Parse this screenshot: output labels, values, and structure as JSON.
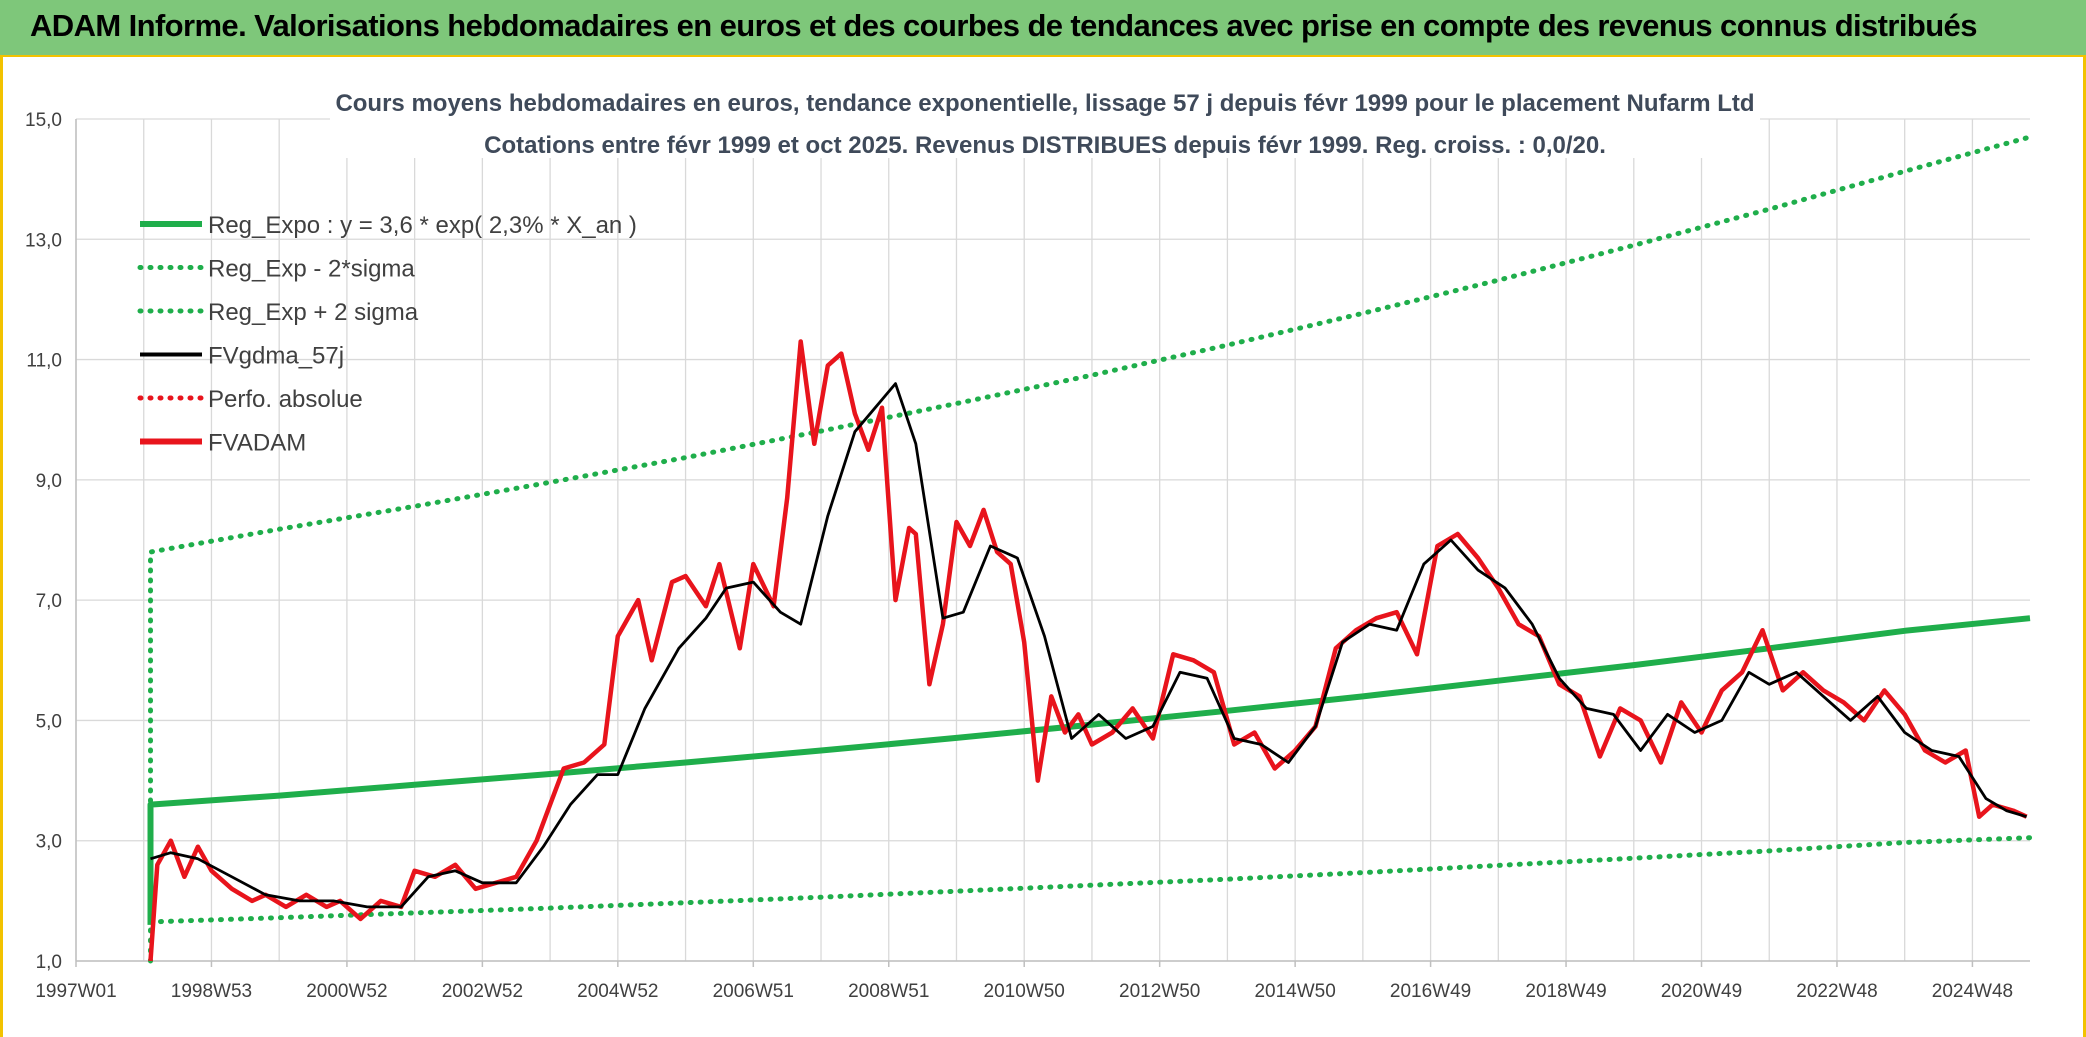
{
  "header": {
    "title": "ADAM Informe. Valorisations hebdomadaires en euros et des courbes de tendances avec prise en compte des revenus connus distribués"
  },
  "chart_data": {
    "type": "line",
    "title": "Cours moyens hebdomadaires en euros, tendance exponentielle, lissage 57 j depuis févr 1999 pour le placement Nufarm Ltd",
    "subtitle": "Cotations entre févr 1999 et oct 2025. Revenus DISTRIBUES depuis févr 1999. Reg. croiss. : 0,0/20.",
    "xlabel": "",
    "ylabel": "",
    "xlim": [
      1997.0,
      2025.85
    ],
    "ylim": [
      1.0,
      15.0
    ],
    "y_ticks": [
      "1,0",
      "3,0",
      "5,0",
      "7,0",
      "9,0",
      "11,0",
      "13,0",
      "15,0"
    ],
    "y_tick_values": [
      1,
      3,
      5,
      7,
      9,
      11,
      13,
      15
    ],
    "x_ticks": [
      "1997W01",
      "1998W53",
      "2000W52",
      "2002W52",
      "2004W52",
      "2006W51",
      "2008W51",
      "2010W50",
      "2012W50",
      "2014W50",
      "2016W49",
      "2018W49",
      "2020W49",
      "2022W48",
      "2024W48"
    ],
    "x_tick_values": [
      1997.0,
      1999.0,
      2001.0,
      2003.0,
      2005.0,
      2007.0,
      2009.0,
      2011.0,
      2013.0,
      2015.0,
      2017.0,
      2019.0,
      2021.0,
      2023.0,
      2025.0
    ],
    "grid": true,
    "legend_position": "top-left",
    "series": [
      {
        "name": "Reg_Expo : y = 3,6 * exp( 2,3% *  X_an )",
        "color": "#1fae4b",
        "style": "solid",
        "x": [
          1998.1,
          1998.1,
          2000,
          2002,
          2004,
          2006,
          2008,
          2010,
          2012,
          2014,
          2016,
          2018,
          2020,
          2022,
          2024,
          2025.85
        ],
        "y": [
          1.6,
          3.6,
          3.75,
          3.93,
          4.11,
          4.3,
          4.5,
          4.71,
          4.93,
          5.16,
          5.4,
          5.66,
          5.92,
          6.2,
          6.49,
          6.7
        ]
      },
      {
        "name": "Reg_Exp - 2*sigma",
        "color": "#1fae4b",
        "style": "dotted",
        "x": [
          1998.1,
          2000,
          2002,
          2004,
          2006,
          2008,
          2010,
          2012,
          2014,
          2016,
          2018,
          2020,
          2022,
          2024,
          2025.85
        ],
        "y": [
          1.65,
          1.72,
          1.8,
          1.88,
          1.97,
          2.06,
          2.16,
          2.26,
          2.36,
          2.47,
          2.59,
          2.71,
          2.83,
          2.97,
          3.05
        ]
      },
      {
        "name": "Reg_Exp + 2 sigma",
        "color": "#1fae4b",
        "style": "dotted",
        "x": [
          1998.1,
          1998.1,
          2000,
          2002,
          2004,
          2006,
          2008,
          2010,
          2012,
          2014,
          2016,
          2018,
          2020,
          2022,
          2024,
          2025.85
        ],
        "y": [
          1.0,
          7.8,
          8.18,
          8.56,
          8.96,
          9.37,
          9.81,
          10.27,
          10.74,
          11.24,
          11.77,
          12.32,
          12.9,
          13.5,
          14.13,
          14.7
        ]
      },
      {
        "name": "FVgdma_57j",
        "color": "#000000",
        "style": "solid",
        "x": [
          1998.1,
          1998.4,
          1998.8,
          1999.3,
          1999.8,
          2000.3,
          2000.8,
          2001.3,
          2001.8,
          2002.2,
          2002.6,
          2003.0,
          2003.5,
          2003.9,
          2004.3,
          2004.7,
          2005.0,
          2005.4,
          2005.9,
          2006.3,
          2006.6,
          2007.0,
          2007.4,
          2007.7,
          2008.1,
          2008.5,
          2008.8,
          2009.1,
          2009.4,
          2009.8,
          2010.1,
          2010.5,
          2010.9,
          2011.3,
          2011.7,
          2012.1,
          2012.5,
          2012.9,
          2013.3,
          2013.7,
          2014.1,
          2014.5,
          2014.9,
          2015.3,
          2015.7,
          2016.1,
          2016.5,
          2016.9,
          2017.3,
          2017.7,
          2018.1,
          2018.5,
          2018.9,
          2019.3,
          2019.7,
          2020.1,
          2020.5,
          2020.9,
          2021.3,
          2021.7,
          2022.0,
          2022.4,
          2022.8,
          2023.2,
          2023.6,
          2024.0,
          2024.4,
          2024.8,
          2025.2,
          2025.5,
          2025.8
        ],
        "y": [
          2.7,
          2.8,
          2.7,
          2.4,
          2.1,
          2.0,
          2.0,
          1.9,
          1.9,
          2.4,
          2.5,
          2.3,
          2.3,
          2.9,
          3.6,
          4.1,
          4.1,
          5.2,
          6.2,
          6.7,
          7.2,
          7.3,
          6.8,
          6.6,
          8.4,
          9.8,
          10.2,
          10.6,
          9.6,
          6.7,
          6.8,
          7.9,
          7.7,
          6.4,
          4.7,
          5.1,
          4.7,
          4.9,
          5.8,
          5.7,
          4.7,
          4.6,
          4.3,
          4.9,
          6.3,
          6.6,
          6.5,
          7.6,
          8.0,
          7.5,
          7.2,
          6.6,
          5.7,
          5.2,
          5.1,
          4.5,
          5.1,
          4.8,
          5.0,
          5.8,
          5.6,
          5.8,
          5.4,
          5.0,
          5.4,
          4.8,
          4.5,
          4.4,
          3.7,
          3.5,
          3.4
        ]
      },
      {
        "name": "Perfo. absolue",
        "color": "#e8141c",
        "style": "dotted",
        "x": [],
        "y": []
      },
      {
        "name": "FVADAM",
        "color": "#e8141c",
        "style": "solid",
        "x": [
          1998.1,
          1998.2,
          1998.4,
          1998.6,
          1998.8,
          1999.0,
          1999.3,
          1999.6,
          1999.8,
          2000.1,
          2000.4,
          2000.7,
          2000.9,
          2001.2,
          2001.5,
          2001.8,
          2002.0,
          2002.3,
          2002.6,
          2002.9,
          2003.2,
          2003.5,
          2003.8,
          2004.0,
          2004.2,
          2004.5,
          2004.8,
          2005.0,
          2005.3,
          2005.5,
          2005.8,
          2006.0,
          2006.3,
          2006.5,
          2006.8,
          2007.0,
          2007.3,
          2007.5,
          2007.7,
          2007.9,
          2008.1,
          2008.3,
          2008.5,
          2008.7,
          2008.9,
          2009.1,
          2009.3,
          2009.4,
          2009.6,
          2009.8,
          2010.0,
          2010.2,
          2010.4,
          2010.6,
          2010.8,
          2011.0,
          2011.2,
          2011.4,
          2011.6,
          2011.8,
          2012.0,
          2012.3,
          2012.6,
          2012.9,
          2013.2,
          2013.5,
          2013.8,
          2014.1,
          2014.4,
          2014.7,
          2015.0,
          2015.3,
          2015.6,
          2015.9,
          2016.2,
          2016.5,
          2016.8,
          2017.1,
          2017.4,
          2017.7,
          2018.0,
          2018.3,
          2018.6,
          2018.9,
          2019.2,
          2019.5,
          2019.8,
          2020.1,
          2020.4,
          2020.7,
          2021.0,
          2021.3,
          2021.6,
          2021.9,
          2022.2,
          2022.5,
          2022.8,
          2023.1,
          2023.4,
          2023.7,
          2024.0,
          2024.3,
          2024.6,
          2024.9,
          2025.1,
          2025.3,
          2025.6,
          2025.8
        ],
        "y": [
          1.0,
          2.6,
          3.0,
          2.4,
          2.9,
          2.5,
          2.2,
          2.0,
          2.1,
          1.9,
          2.1,
          1.9,
          2.0,
          1.7,
          2.0,
          1.9,
          2.5,
          2.4,
          2.6,
          2.2,
          2.3,
          2.4,
          3.0,
          3.6,
          4.2,
          4.3,
          4.6,
          6.4,
          7.0,
          6.0,
          7.3,
          7.4,
          6.9,
          7.6,
          6.2,
          7.6,
          6.9,
          8.7,
          11.3,
          9.6,
          10.9,
          11.1,
          10.1,
          9.5,
          10.2,
          7.0,
          8.2,
          8.1,
          5.6,
          6.6,
          8.3,
          7.9,
          8.5,
          7.8,
          7.6,
          6.3,
          4.0,
          5.4,
          4.8,
          5.1,
          4.6,
          4.8,
          5.2,
          4.7,
          6.1,
          6.0,
          5.8,
          4.6,
          4.8,
          4.2,
          4.5,
          4.9,
          6.2,
          6.5,
          6.7,
          6.8,
          6.1,
          7.9,
          8.1,
          7.7,
          7.2,
          6.6,
          6.4,
          5.6,
          5.4,
          4.4,
          5.2,
          5.0,
          4.3,
          5.3,
          4.8,
          5.5,
          5.8,
          6.5,
          5.5,
          5.8,
          5.5,
          5.3,
          5.0,
          5.5,
          5.1,
          4.5,
          4.3,
          4.5,
          3.4,
          3.6,
          3.5,
          3.4
        ]
      }
    ]
  }
}
